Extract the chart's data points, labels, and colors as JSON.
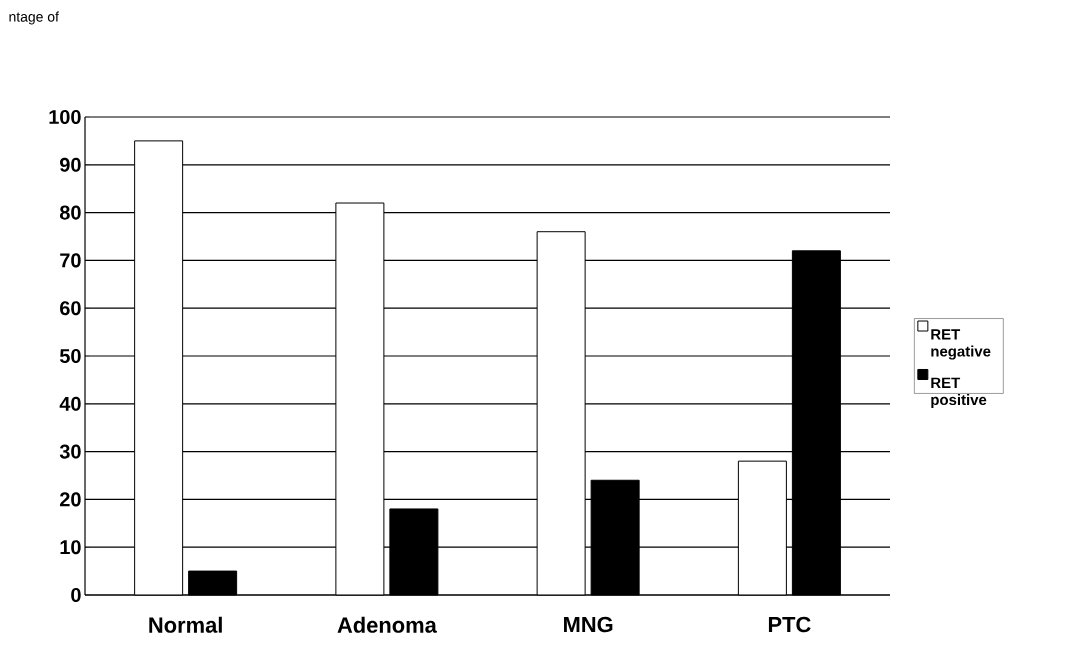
{
  "chart_data": {
    "type": "bar",
    "annotations": [
      "ntage of"
    ],
    "categories": [
      "Normal",
      "Adenoma",
      "MNG",
      "PTC"
    ],
    "series": [
      {
        "name": "RET negative",
        "color": "#ffffff",
        "values": [
          95,
          82,
          76,
          28
        ]
      },
      {
        "name": "RET positive",
        "color": "#000000",
        "values": [
          5,
          18,
          24,
          72
        ]
      }
    ],
    "ylim": [
      0,
      100
    ],
    "yticks": [
      0,
      10,
      20,
      30,
      40,
      50,
      60,
      70,
      80,
      90,
      100
    ],
    "grid": "y",
    "legend": "right"
  }
}
